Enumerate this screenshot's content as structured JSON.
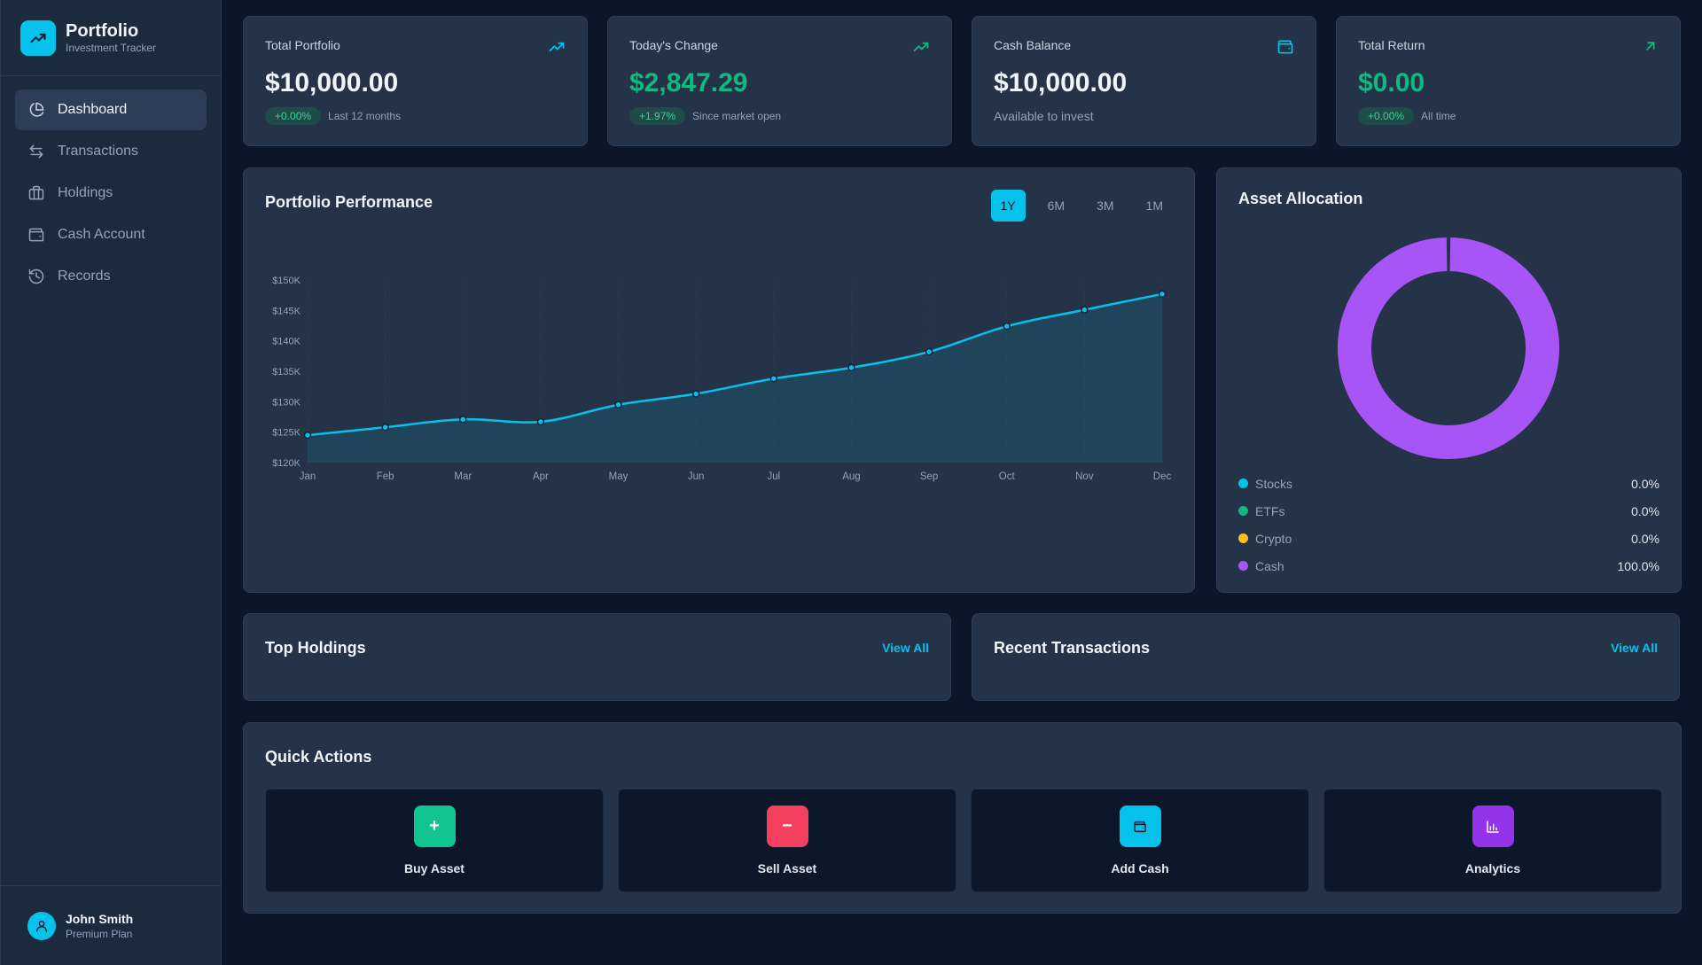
{
  "brand": {
    "title": "Portfolio",
    "subtitle": "Investment Tracker"
  },
  "nav": [
    {
      "label": "Dashboard",
      "icon": "pie-chart-icon",
      "active": true
    },
    {
      "label": "Transactions",
      "icon": "arrows-exchange-icon"
    },
    {
      "label": "Holdings",
      "icon": "briefcase-icon"
    },
    {
      "label": "Cash Account",
      "icon": "wallet-icon"
    },
    {
      "label": "Records",
      "icon": "history-icon"
    }
  ],
  "user": {
    "name": "John Smith",
    "plan": "Premium Plan"
  },
  "stats": {
    "total_portfolio": {
      "label": "Total Portfolio",
      "value": "$10,000.00",
      "badge": "+0.00%",
      "note": "Last 12 months"
    },
    "todays_change": {
      "label": "Today's Change",
      "value": "$2,847.29",
      "badge": "+1.97%",
      "note": "Since market open"
    },
    "cash_balance": {
      "label": "Cash Balance",
      "value": "$10,000.00",
      "note": "Available to invest"
    },
    "total_return": {
      "label": "Total Return",
      "value": "$0.00",
      "badge": "+0.00%",
      "note": "All time"
    }
  },
  "performance": {
    "title": "Portfolio Performance",
    "ranges": [
      "1Y",
      "6M",
      "3M",
      "1M"
    ],
    "active_range": "1Y"
  },
  "chart_data": {
    "type": "area",
    "title": "Portfolio Performance",
    "x": [
      "Jan",
      "Feb",
      "Mar",
      "Apr",
      "May",
      "Jun",
      "Jul",
      "Aug",
      "Sep",
      "Oct",
      "Nov",
      "Dec"
    ],
    "values": [
      124500,
      125800,
      127100,
      126700,
      129500,
      131300,
      133800,
      135600,
      138200,
      142400,
      145100,
      147700
    ],
    "yticks": [
      "$150K",
      "$145K",
      "$140K",
      "$135K",
      "$130K",
      "$125K",
      "$120K"
    ],
    "ylim": [
      120000,
      150000
    ],
    "grid": true,
    "color": "#06c2ea"
  },
  "allocation": {
    "title": "Asset Allocation",
    "items": [
      {
        "label": "Stocks",
        "value": "0.0%",
        "color": "#06c2ea",
        "pct": 0
      },
      {
        "label": "ETFs",
        "value": "0.0%",
        "color": "#10b981",
        "pct": 0
      },
      {
        "label": "Crypto",
        "value": "0.0%",
        "color": "#fbbf24",
        "pct": 0
      },
      {
        "label": "Cash",
        "value": "100.0%",
        "color": "#a855f7",
        "pct": 100
      }
    ]
  },
  "top_holdings": {
    "title": "Top Holdings",
    "link": "View All"
  },
  "recent_transactions": {
    "title": "Recent Transactions",
    "link": "View All"
  },
  "quick_actions": {
    "title": "Quick Actions",
    "items": [
      {
        "label": "Buy Asset",
        "icon": "plus-icon",
        "glyph": "+",
        "color": "#10c58f"
      },
      {
        "label": "Sell Asset",
        "icon": "minus-icon",
        "glyph": "−",
        "color": "#f43f5e"
      },
      {
        "label": "Add Cash",
        "icon": "wallet-icon",
        "glyph": "",
        "color": "#06c2ea"
      },
      {
        "label": "Analytics",
        "icon": "bar-chart-icon",
        "glyph": "",
        "color": "#9333ea"
      }
    ]
  }
}
